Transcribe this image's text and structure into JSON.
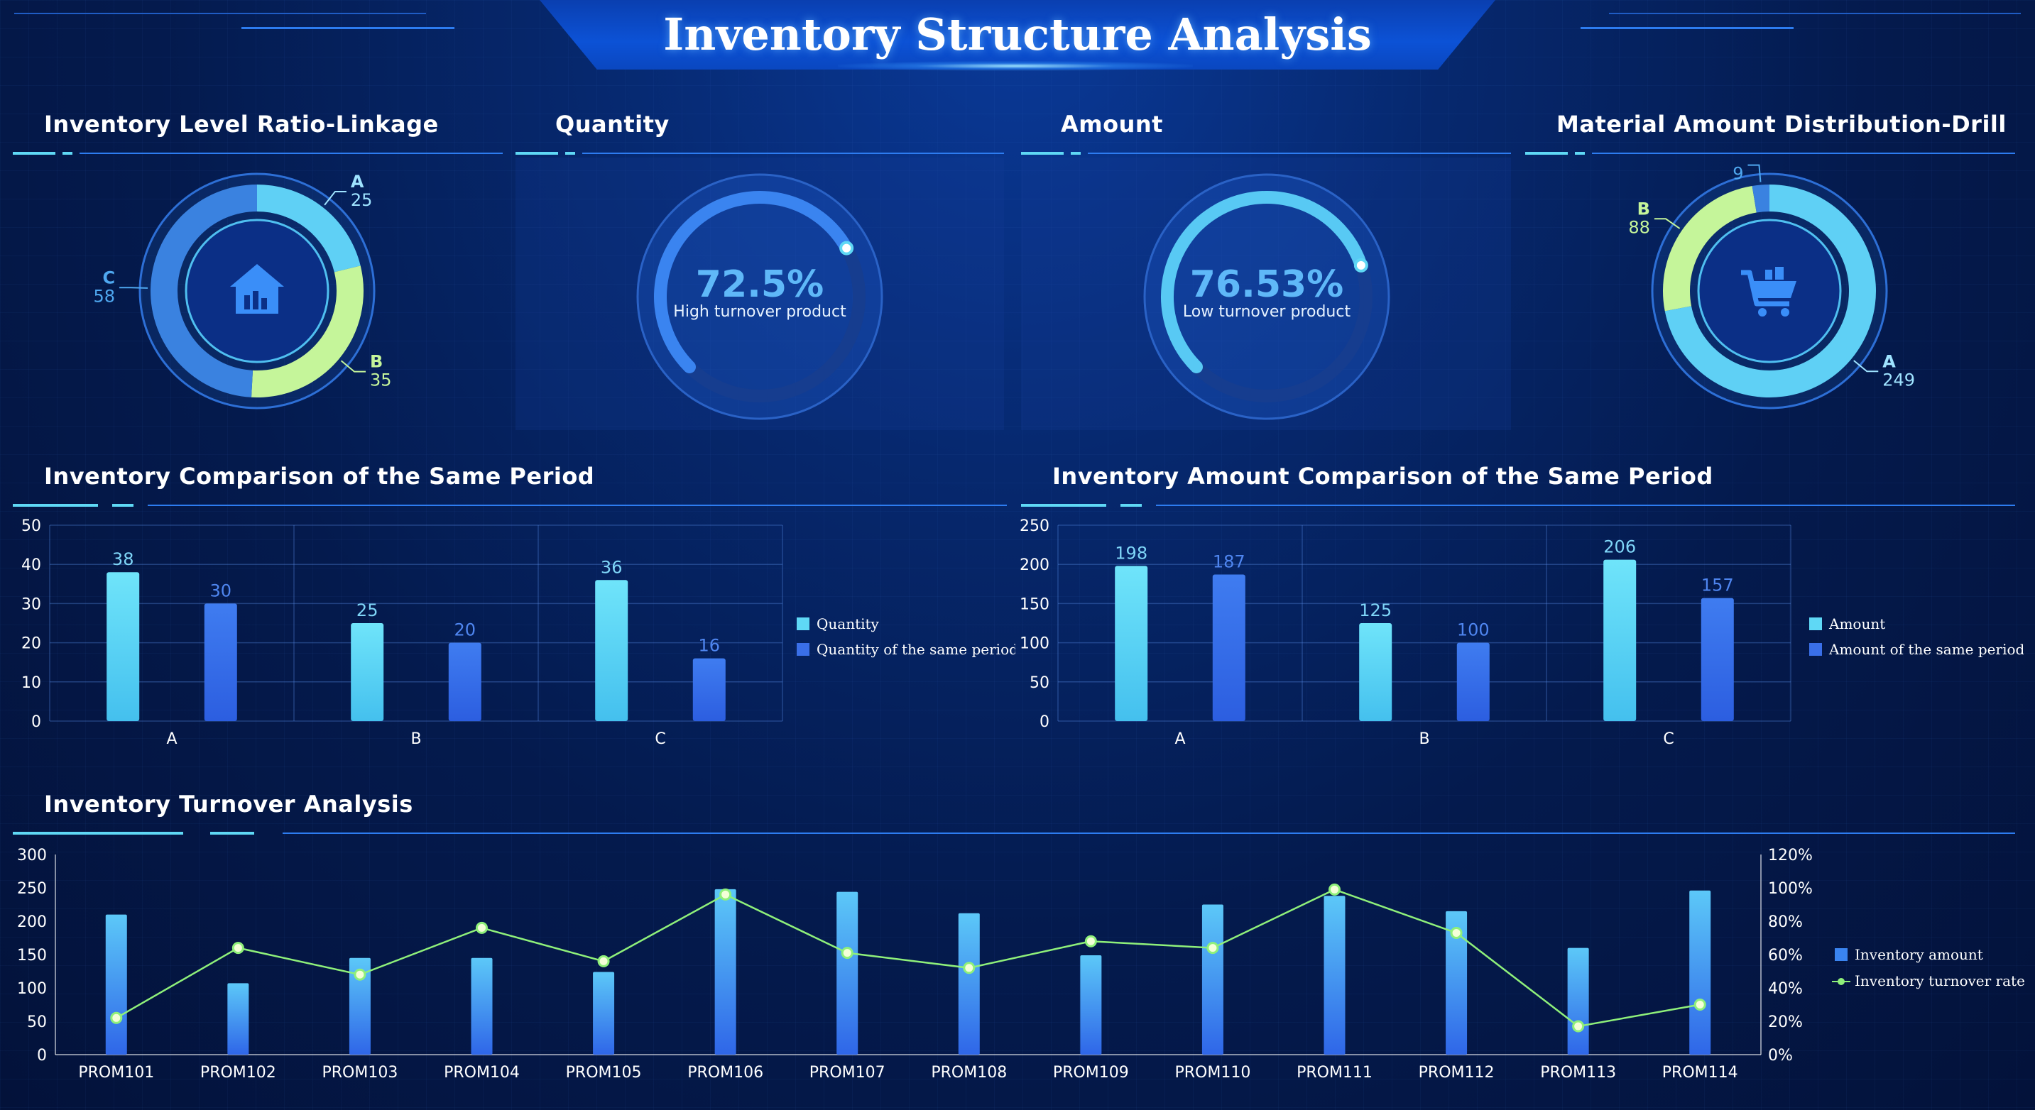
{
  "page_title": "Inventory Structure Analysis",
  "sections": {
    "level_ratio": "Inventory Level Ratio-Linkage",
    "quantity": "Quantity",
    "amount": "Amount",
    "material": "Material Amount Distribution-Drill",
    "qty_compare": "Inventory Comparison of the Same Period",
    "amt_compare": "Inventory Amount Comparison of the Same Period",
    "turnover": "Inventory Turnover Analysis"
  },
  "colors": {
    "cyan": "#5fd8f5",
    "blue": "#3a6fe8",
    "green": "#c5f59a",
    "line": "#8ff07a"
  },
  "icons": {
    "level_ratio": "warehouse-icon",
    "material": "cart-icon"
  },
  "chart_data": [
    {
      "type": "pie",
      "name": "level-ratio-donut",
      "labels": [
        "A",
        "B",
        "C"
      ],
      "values": [
        25,
        35,
        58
      ]
    },
    {
      "type": "gauge",
      "name": "quantity-gauge",
      "value": 72.5,
      "value_text": "72.5%",
      "caption": "High turnover product"
    },
    {
      "type": "gauge",
      "name": "amount-gauge",
      "value": 76.53,
      "value_text": "76.53%",
      "caption": "Low turnover product"
    },
    {
      "type": "pie",
      "name": "material-donut",
      "labels": [
        "A",
        "B",
        "C"
      ],
      "values": [
        249,
        88,
        9
      ],
      "label_texts": [
        "A",
        "B",
        ""
      ]
    },
    {
      "type": "bar",
      "name": "qty-compare",
      "categories": [
        "A",
        "B",
        "C"
      ],
      "series": [
        {
          "name": "Quantity",
          "values": [
            38,
            25,
            36
          ]
        },
        {
          "name": "Quantity of the same period",
          "values": [
            30,
            20,
            16
          ]
        }
      ],
      "ylim": [
        0,
        50
      ],
      "yticks": [
        0,
        10,
        20,
        30,
        40,
        50
      ]
    },
    {
      "type": "bar",
      "name": "amt-compare",
      "categories": [
        "A",
        "B",
        "C"
      ],
      "series": [
        {
          "name": "Amount",
          "values": [
            198,
            125,
            206
          ]
        },
        {
          "name": "Amount of the same period",
          "values": [
            187,
            100,
            157
          ]
        }
      ],
      "ylim": [
        0,
        250
      ],
      "yticks": [
        0,
        50,
        100,
        150,
        200,
        250
      ]
    },
    {
      "type": "bar-line",
      "name": "turnover",
      "categories": [
        "PROM101",
        "PROM102",
        "PROM103",
        "PROM104",
        "PROM105",
        "PROM106",
        "PROM107",
        "PROM108",
        "PROM109",
        "PROM110",
        "PROM111",
        "PROM112",
        "PROM113",
        "PROM114"
      ],
      "series": [
        {
          "name": "Inventory amount",
          "type": "bar",
          "values": [
            210,
            107,
            145,
            145,
            124,
            248,
            244,
            212,
            149,
            225,
            238,
            215,
            160,
            246
          ]
        },
        {
          "name": "Inventory turnover rate",
          "type": "line",
          "values": [
            22,
            64,
            48,
            76,
            56,
            96,
            61,
            52,
            68,
            64,
            99,
            73,
            17,
            30
          ]
        }
      ],
      "ylim_left": [
        0,
        300
      ],
      "yticks_left": [
        "0",
        "50",
        "100",
        "150",
        "200",
        "250",
        "300"
      ],
      "ylim_right": [
        0,
        120
      ],
      "yticks_right": [
        "0%",
        "20%",
        "40%",
        "60%",
        "80%",
        "100%",
        "120%"
      ]
    }
  ]
}
